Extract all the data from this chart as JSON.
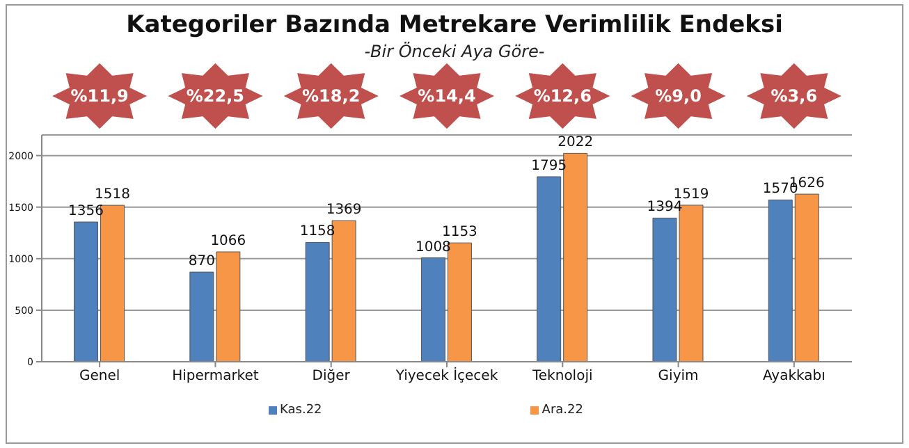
{
  "chart_data": {
    "type": "bar",
    "title": "Kategoriler Bazında Metrekare Verimlilik Endeksi",
    "subtitle": "-Bir Önceki Aya Göre-",
    "categories": [
      "Genel",
      "Hipermarket",
      "Diğer",
      "Yiyecek İçecek",
      "Teknoloji",
      "Giyim",
      "Ayakkabı"
    ],
    "series": [
      {
        "name": "Kas.22",
        "color": "#4f81bd",
        "values": [
          1356,
          870,
          1158,
          1008,
          1795,
          1394,
          1570
        ]
      },
      {
        "name": "Ara.22",
        "color": "#f79646",
        "values": [
          1518,
          1066,
          1369,
          1153,
          2022,
          1519,
          1626
        ]
      }
    ],
    "annotations": [
      "%11,9",
      "%22,5",
      "%18,2",
      "%14,4",
      "%12,6",
      "%9,0",
      "%3,6"
    ],
    "ylim": [
      0,
      2200
    ],
    "yticks": [
      0,
      500,
      1000,
      1500,
      2000
    ],
    "grid": "y",
    "legend": "bottom",
    "data_labels": true
  }
}
